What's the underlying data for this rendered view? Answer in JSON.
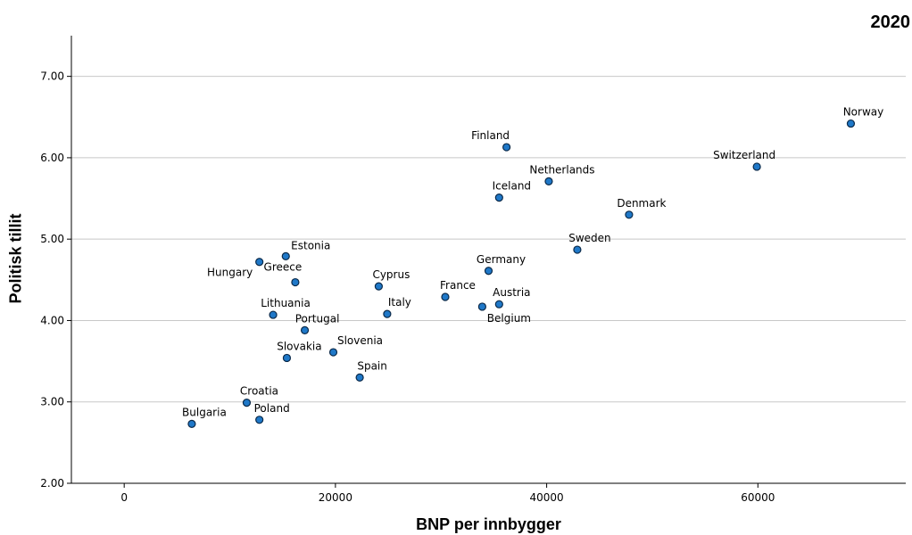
{
  "chart_data": {
    "type": "scatter",
    "title": "2020",
    "xlabel": "BNP per innbygger",
    "ylabel": "Politisk tillit",
    "xlim": [
      -5000,
      74000
    ],
    "ylim": [
      2.0,
      7.5
    ],
    "xticks": [
      0,
      20000,
      40000,
      60000
    ],
    "xtick_labels": [
      "0",
      "20000",
      "40000",
      "60000"
    ],
    "yticks": [
      2.0,
      3.0,
      4.0,
      5.0,
      6.0,
      7.0
    ],
    "ytick_labels": [
      "2.00",
      "3.00",
      "4.00",
      "5.00",
      "6.00",
      "7.00"
    ],
    "grid": "horizontal",
    "marker_color": "#1f78c8",
    "points": [
      {
        "label": "Norway",
        "x": 68800,
        "y": 6.42
      },
      {
        "label": "Switzerland",
        "x": 59900,
        "y": 5.89
      },
      {
        "label": "Finland",
        "x": 36200,
        "y": 6.13
      },
      {
        "label": "Netherlands",
        "x": 40200,
        "y": 5.71
      },
      {
        "label": "Iceland",
        "x": 35500,
        "y": 5.51
      },
      {
        "label": "Denmark",
        "x": 47800,
        "y": 5.3
      },
      {
        "label": "Sweden",
        "x": 42900,
        "y": 4.87
      },
      {
        "label": "Germany",
        "x": 34500,
        "y": 4.61
      },
      {
        "label": "Austria",
        "x": 35500,
        "y": 4.2
      },
      {
        "label": "Belgium",
        "x": 33900,
        "y": 4.17
      },
      {
        "label": "France",
        "x": 30400,
        "y": 4.29
      },
      {
        "label": "Italy",
        "x": 24900,
        "y": 4.08
      },
      {
        "label": "Cyprus",
        "x": 24100,
        "y": 4.42
      },
      {
        "label": "Estonia",
        "x": 15300,
        "y": 4.79
      },
      {
        "label": "Hungary",
        "x": 12800,
        "y": 4.72
      },
      {
        "label": "Greece",
        "x": 16200,
        "y": 4.47
      },
      {
        "label": "Lithuania",
        "x": 14100,
        "y": 4.07
      },
      {
        "label": "Portugal",
        "x": 17100,
        "y": 3.88
      },
      {
        "label": "Slovakia",
        "x": 15400,
        "y": 3.54
      },
      {
        "label": "Slovenia",
        "x": 19800,
        "y": 3.61
      },
      {
        "label": "Spain",
        "x": 22300,
        "y": 3.3
      },
      {
        "label": "Croatia",
        "x": 11600,
        "y": 2.99
      },
      {
        "label": "Poland",
        "x": 12800,
        "y": 2.78
      },
      {
        "label": "Bulgaria",
        "x": 6400,
        "y": 2.73
      }
    ]
  }
}
